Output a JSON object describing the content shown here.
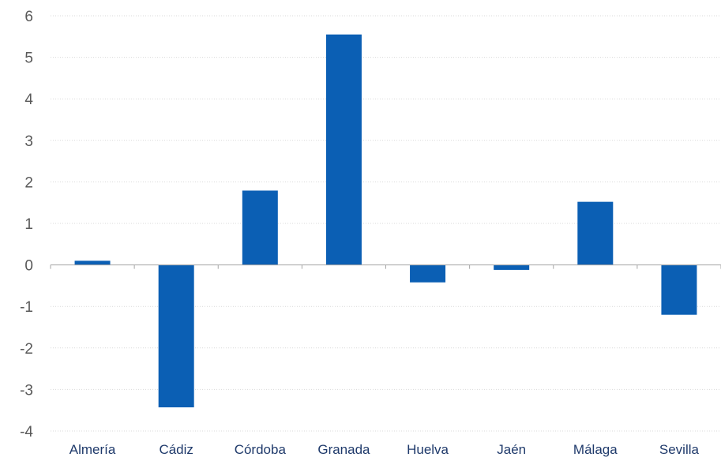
{
  "chart_data": {
    "type": "bar",
    "title": "",
    "xlabel": "",
    "ylabel": "",
    "categories": [
      "Almería",
      "Cádiz",
      "Córdoba",
      "Granada",
      "Huelva",
      "Jaén",
      "Málaga",
      "Sevilla"
    ],
    "values": [
      0.1,
      -3.43,
      1.79,
      5.55,
      -0.42,
      -0.12,
      1.52,
      -1.2
    ],
    "ylim": [
      -4,
      6
    ],
    "yticks": [
      6,
      5,
      4,
      3,
      2,
      1,
      0,
      -1,
      -2,
      -3,
      -4
    ],
    "ytick_labels": [
      "6",
      "5",
      "4",
      "3",
      "2",
      "1",
      "0",
      "-1",
      "-2",
      "-3",
      "-4"
    ],
    "grid": true,
    "legend": false,
    "colors": {
      "bar": "#0b5fb4",
      "grid": "#d9d9d9",
      "axis": "#a6a6a6"
    }
  }
}
